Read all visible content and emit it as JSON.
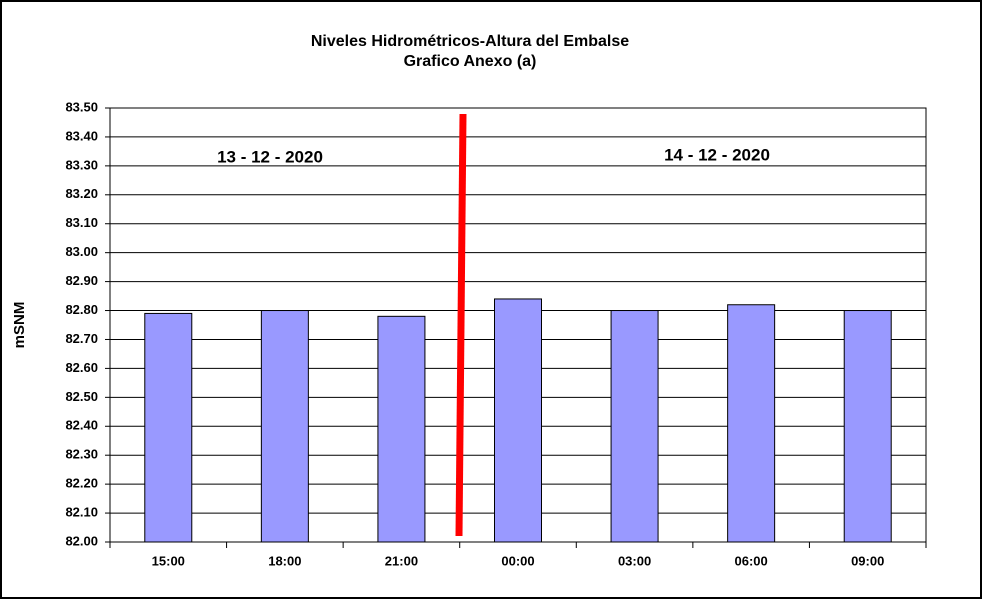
{
  "chart_data": {
    "type": "bar",
    "title": "Niveles Hidrométricos-Altura del Embalse",
    "subtitle": "Grafico Anexo (a)",
    "y_label": "mSNM",
    "annotations": [
      "13 - 12 - 2020",
      "14 - 12 - 2020"
    ],
    "categories": [
      "15:00",
      "18:00",
      "21:00",
      "00:00",
      "03:00",
      "06:00",
      "09:00"
    ],
    "values": [
      82.79,
      82.8,
      82.78,
      82.84,
      82.8,
      82.82,
      82.8
    ],
    "color": "#9999ff",
    "ylim": [
      82,
      83.5
    ],
    "yticks": [
      {
        "value": 82,
        "label": "82.00"
      },
      {
        "value": 82.1,
        "label": "82.10"
      },
      {
        "value": 82.2,
        "label": "82.20"
      },
      {
        "value": 82.3,
        "label": "82.30"
      },
      {
        "value": 82.4,
        "label": "82.40"
      },
      {
        "value": 82.5,
        "label": "82.50"
      },
      {
        "value": 82.6,
        "label": "82.60"
      },
      {
        "value": 82.7,
        "label": "82.70"
      },
      {
        "value": 82.8,
        "label": "82.80"
      },
      {
        "value": 82.9,
        "label": "82.90"
      },
      {
        "value": 83,
        "label": "83.00"
      },
      {
        "value": 83.1,
        "label": "83.10"
      },
      {
        "value": 83.2,
        "label": "83.20"
      },
      {
        "value": 83.3,
        "label": "83.30"
      },
      {
        "value": 83.4,
        "label": "83.40"
      },
      {
        "value": 83.5,
        "label": "83.50"
      }
    ],
    "grid": true
  }
}
